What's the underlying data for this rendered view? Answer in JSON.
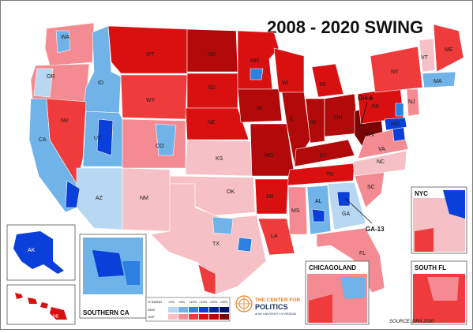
{
  "title": "2008 - 2020 SWING",
  "callouts": {
    "oh6": "OH-6",
    "ga13": "GA-13"
  },
  "state_labels": [
    "WA",
    "OR",
    "ID",
    "MT",
    "ND",
    "MN",
    "WI",
    "MI",
    "ME",
    "VT",
    "MA",
    "SD",
    "WY",
    "NE",
    "IA",
    "IL",
    "IN",
    "OH",
    "PA",
    "NY",
    "NJ",
    "MD",
    "NV",
    "UT",
    "CO",
    "KS",
    "MO",
    "KY",
    "WV",
    "VA",
    "CA",
    "AZ",
    "NM",
    "OK",
    "AR",
    "TN",
    "NC",
    "SC",
    "GA",
    "AL",
    "MS",
    "LA",
    "TX",
    "FL"
  ],
  "insets": {
    "nyc": "NYC",
    "chicagoland": "CHICAGOLAND",
    "south_fl": "SOUTH FL",
    "southern_ca": "SOUTHERN CA",
    "ak": "AK",
    "hi": "HI"
  },
  "legend": {
    "header": "% SWING",
    "steps": [
      ">0%",
      ">5%",
      ">10%",
      ">15%",
      ">20%",
      ">30%"
    ],
    "rows": [
      {
        "name": "DEM",
        "colors": [
          "#b7d7f2",
          "#6fb3e8",
          "#2d7fe0",
          "#0a3fd9",
          "#0620a8",
          "#03106a"
        ]
      },
      {
        "name": "GOP",
        "colors": [
          "#f6c1c6",
          "#f48b92",
          "#ef3b3b",
          "#d91010",
          "#b20a0a",
          "#7a0505"
        ]
      }
    ]
  },
  "logo": {
    "line1": "THE CENTER FOR",
    "line2": "POLITICS",
    "sub": "at the UNIVERSITY of VIRGINIA"
  },
  "source": "SOURCE: DRA 2020",
  "colors": {
    "dem_light": "#b7d7f2",
    "dem_mid": "#6fb3e8",
    "dem_strong": "#2d7fe0",
    "dem_dark": "#0a3fd9",
    "gop_light": "#f6c1c6",
    "gop_mid": "#f48b92",
    "gop_strong": "#ef3b3b",
    "gop_dark": "#d91010",
    "gop_darker": "#b20a0a",
    "gop_darkest": "#7a0505"
  }
}
